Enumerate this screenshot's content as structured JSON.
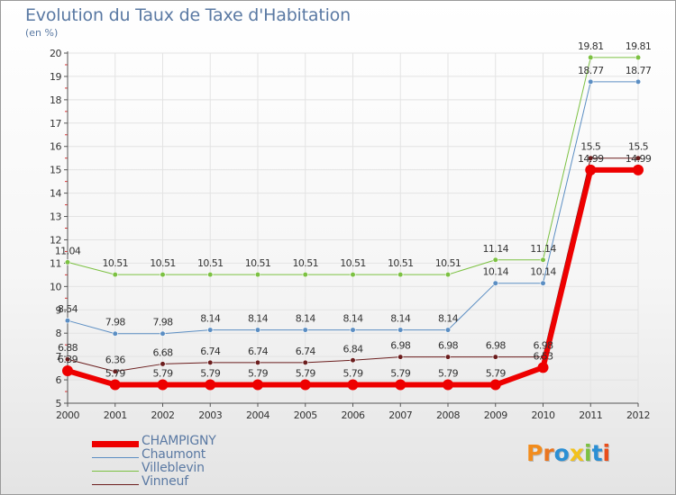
{
  "title": "Evolution du Taux de Taxe d'Habitation",
  "unit": "(en %)",
  "logo": {
    "letters": [
      {
        "ch": "P",
        "color": "#f28c1c"
      },
      {
        "ch": "r",
        "color": "#e9751f"
      },
      {
        "ch": "o",
        "color": "#2b8fd4"
      },
      {
        "ch": "x",
        "color": "#f2c21c"
      },
      {
        "ch": "i",
        "color": "#7cc142"
      },
      {
        "ch": "t",
        "color": "#2b8fd4"
      },
      {
        "ch": "i",
        "color": "#e94e1b"
      }
    ]
  },
  "chart_data": {
    "type": "line",
    "title": "Evolution du Taux de Taxe d'Habitation",
    "ylabel": "(en %)",
    "xlabel": "",
    "ylim": [
      5,
      20
    ],
    "yticks": [
      "5",
      "6",
      "7",
      "8",
      "9",
      "10",
      "11",
      "12",
      "13",
      "14",
      "15",
      "16",
      "17",
      "18",
      "19",
      "20"
    ],
    "categories": [
      "2000",
      "2001",
      "2002",
      "2003",
      "2004",
      "2005",
      "2006",
      "2007",
      "2008",
      "2009",
      "2010",
      "2011",
      "2012"
    ],
    "grid": true,
    "legend_position": "bottom-left",
    "series": [
      {
        "name": "Vinneuf",
        "color": "#6b1d1d",
        "width": 1,
        "marker": 2.8,
        "values": [
          6.88,
          6.36,
          6.68,
          6.74,
          6.74,
          6.74,
          6.84,
          6.98,
          6.98,
          6.98,
          6.98,
          15.5,
          15.5
        ],
        "labels": [
          "6.88",
          "6.36",
          "6.68",
          "6.74",
          "6.74",
          "6.74",
          "6.84",
          "6.98",
          "6.98",
          "6.98",
          "6.98",
          "15.5",
          "15.5"
        ]
      },
      {
        "name": "Villeblevin",
        "color": "#7cc142",
        "width": 1,
        "marker": 2.8,
        "values": [
          11.04,
          10.51,
          10.51,
          10.51,
          10.51,
          10.51,
          10.51,
          10.51,
          10.51,
          11.14,
          11.14,
          19.81,
          19.81
        ],
        "labels": [
          "11.04",
          "10.51",
          "10.51",
          "10.51",
          "10.51",
          "10.51",
          "10.51",
          "10.51",
          "10.51",
          "11.14",
          "11.14",
          "19.81",
          "19.81"
        ]
      },
      {
        "name": "Chaumont",
        "color": "#5b8ec3",
        "width": 1,
        "marker": 2.8,
        "values": [
          8.54,
          7.98,
          7.98,
          8.14,
          8.14,
          8.14,
          8.14,
          8.14,
          8.14,
          10.14,
          10.14,
          18.77,
          18.77
        ],
        "labels": [
          "8.54",
          "7.98",
          "7.98",
          "8.14",
          "8.14",
          "8.14",
          "8.14",
          "8.14",
          "8.14",
          "10.14",
          "10.14",
          "18.77",
          "18.77"
        ]
      },
      {
        "name": "CHAMPIGNY",
        "color": "#ee0000",
        "width": 6,
        "marker": 6,
        "values": [
          6.39,
          5.79,
          5.79,
          5.79,
          5.79,
          5.79,
          5.79,
          5.79,
          5.79,
          5.79,
          6.53,
          14.99,
          14.99
        ],
        "labels": [
          "6.39",
          "5.79",
          "5.79",
          "5.79",
          "5.79",
          "5.79",
          "5.79",
          "5.79",
          "5.79",
          "5.79",
          "6.53",
          "14.99",
          "14.99"
        ]
      }
    ]
  },
  "legend_order": [
    "CHAMPIGNY",
    "Chaumont",
    "Villeblevin",
    "Vinneuf"
  ]
}
